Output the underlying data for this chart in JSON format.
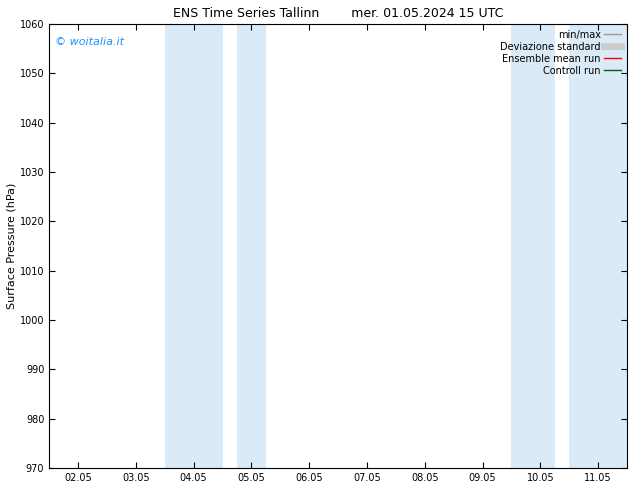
{
  "title_left": "ENS Time Series Tallinn",
  "title_right": "mer. 01.05.2024 15 UTC",
  "ylabel": "Surface Pressure (hPa)",
  "ylim": [
    970,
    1060
  ],
  "yticks": [
    970,
    980,
    990,
    1000,
    1010,
    1020,
    1030,
    1040,
    1050,
    1060
  ],
  "xtick_labels": [
    "02.05",
    "03.05",
    "04.05",
    "05.05",
    "06.05",
    "07.05",
    "08.05",
    "09.05",
    "10.05",
    "11.05"
  ],
  "xtick_positions": [
    0,
    1,
    2,
    3,
    4,
    5,
    6,
    7,
    8,
    9
  ],
  "xlim": [
    -0.5,
    9.5
  ],
  "shaded_bands": [
    {
      "x_start": 1.5,
      "x_end": 2.5,
      "color": "#daeaf7"
    },
    {
      "x_start": 2.75,
      "x_end": 3.25,
      "color": "#daeaf7"
    },
    {
      "x_start": 7.5,
      "x_end": 8.25,
      "color": "#daeaf7"
    },
    {
      "x_start": 8.5,
      "x_end": 9.5,
      "color": "#daeaf7"
    }
  ],
  "copyright_text": "© woitalia.it",
  "copyright_color": "#1e90ff",
  "legend_items": [
    {
      "label": "min/max",
      "color": "#999999",
      "lw": 1.0,
      "style": "solid"
    },
    {
      "label": "Deviazione standard",
      "color": "#cccccc",
      "lw": 5,
      "style": "solid"
    },
    {
      "label": "Ensemble mean run",
      "color": "#ff0000",
      "lw": 1.0,
      "style": "solid"
    },
    {
      "label": "Controll run",
      "color": "#006400",
      "lw": 1.0,
      "style": "solid"
    }
  ],
  "background_color": "#ffffff",
  "figsize": [
    6.34,
    4.9
  ],
  "dpi": 100
}
